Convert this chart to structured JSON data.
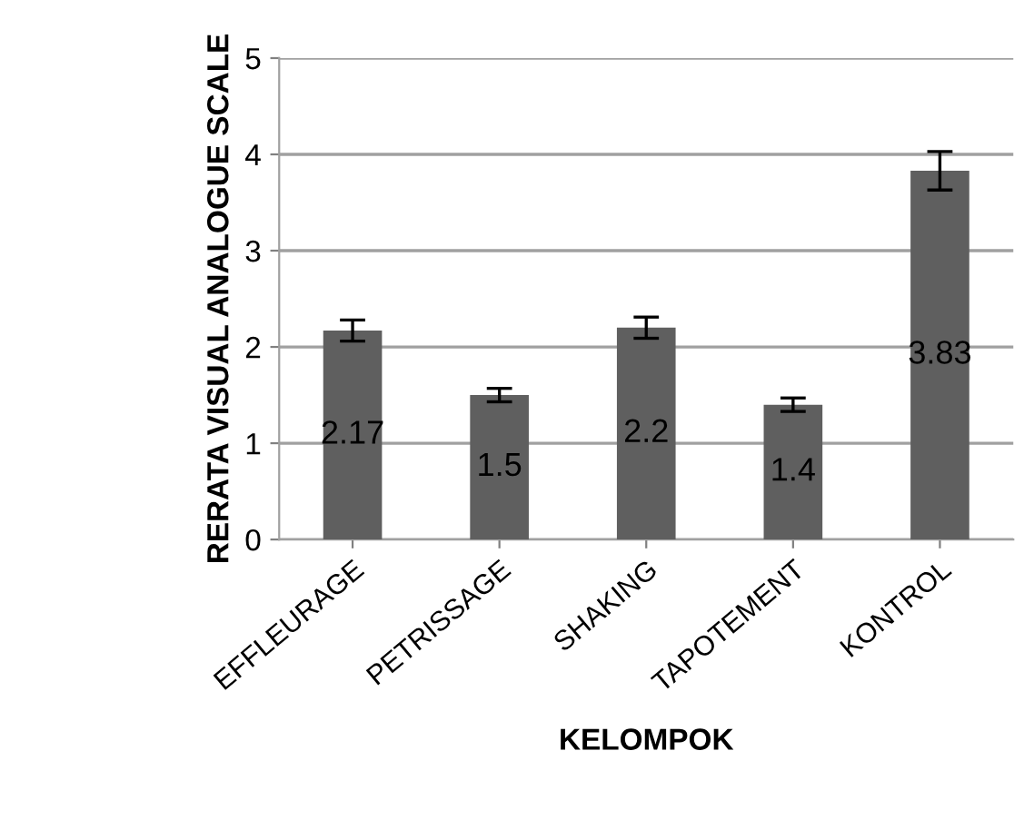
{
  "chart_data": {
    "type": "bar",
    "xlabel": "KELOMPOK",
    "ylabel": "RERATA VISUAL ANALOGUE SCALE",
    "categories": [
      "EFFLEURAGE",
      "PETRISSAGE",
      "SHAKING",
      "TAPOTEMENT",
      "KONTROL"
    ],
    "values": [
      2.17,
      1.5,
      2.2,
      1.4,
      3.83
    ],
    "errors": [
      0.11,
      0.07,
      0.11,
      0.07,
      0.2
    ],
    "color": "#5f5f5f",
    "data_labels": true,
    "ylim": [
      0,
      5
    ],
    "yticks": [
      0,
      1,
      2,
      3,
      4,
      5
    ],
    "grid": "y"
  }
}
